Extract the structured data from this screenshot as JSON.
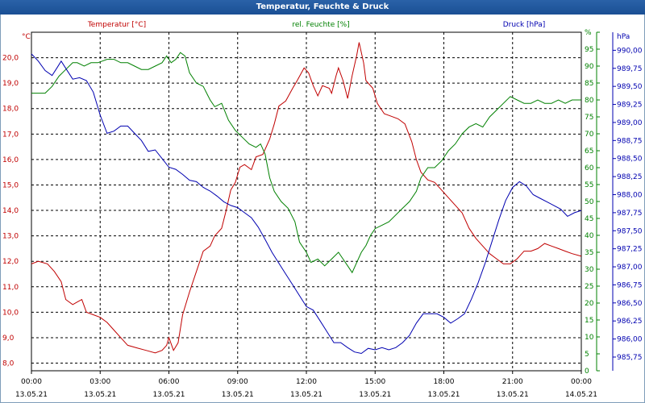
{
  "title": "Temperatur, Feuchte & Druck",
  "colors": {
    "temperature": "#c00000",
    "humidity": "#008000",
    "pressure": "#0000b0",
    "grid": "#000000"
  },
  "chart_data": {
    "type": "line",
    "title": "Temperatur, Feuchte & Druck",
    "grid": true,
    "x_axis": {
      "range_hours": [
        0,
        24
      ],
      "tick_times": [
        "00:00",
        "03:00",
        "06:00",
        "09:00",
        "12:00",
        "15:00",
        "18:00",
        "21:00",
        "00:00"
      ],
      "tick_dates": [
        "13.05.21",
        "13.05.21",
        "13.05.21",
        "13.05.21",
        "13.05.21",
        "13.05.21",
        "13.05.21",
        "13.05.21",
        "14.05.21"
      ]
    },
    "axes": {
      "temperature": {
        "label": "Temperatur [°C]",
        "unit": "°C",
        "ylim": [
          7.7,
          21.0
        ],
        "ticks": [
          "8,0",
          "9,0",
          "10,0",
          "11,0",
          "12,0",
          "13,0",
          "14,0",
          "15,0",
          "16,0",
          "17,0",
          "18,0",
          "19,0",
          "20,0"
        ],
        "tick_values": [
          8,
          9,
          10,
          11,
          12,
          13,
          14,
          15,
          16,
          17,
          18,
          19,
          20
        ]
      },
      "humidity": {
        "label": "rel. Feuchte [%]",
        "unit": "%",
        "ylim": [
          0,
          100
        ],
        "ticks": [
          "0",
          "5",
          "10",
          "15",
          "20",
          "25",
          "30",
          "35",
          "40",
          "45",
          "50",
          "55",
          "60",
          "65",
          "70",
          "75",
          "80",
          "85",
          "90",
          "95",
          "%"
        ],
        "tick_values": [
          0,
          5,
          10,
          15,
          20,
          25,
          30,
          35,
          40,
          45,
          50,
          55,
          60,
          65,
          70,
          75,
          80,
          85,
          90,
          95,
          100
        ]
      },
      "pressure": {
        "label": "Druck [hPa]",
        "unit": "hPa",
        "ylim": [
          985.56,
          990.25
        ],
        "ticks": [
          "985,75",
          "986,00",
          "986,25",
          "986,50",
          "986,75",
          "987,00",
          "987,25",
          "987,50",
          "987,75",
          "988,00",
          "988,25",
          "988,50",
          "988,75",
          "989,00",
          "989,25",
          "989,50",
          "989,75",
          "990,00"
        ],
        "tick_values": [
          985.75,
          986.0,
          986.25,
          986.5,
          986.75,
          987.0,
          987.25,
          987.5,
          987.75,
          988.0,
          988.25,
          988.5,
          988.75,
          989.0,
          989.25,
          989.5,
          989.75,
          990.0
        ]
      }
    },
    "series": [
      {
        "name": "Temperatur [°C]",
        "axis": "temperature",
        "points": [
          [
            0,
            11.9
          ],
          [
            0.3,
            12.0
          ],
          [
            0.7,
            11.9
          ],
          [
            1.0,
            11.6
          ],
          [
            1.3,
            11.2
          ],
          [
            1.5,
            10.5
          ],
          [
            1.8,
            10.3
          ],
          [
            2.0,
            10.4
          ],
          [
            2.2,
            10.5
          ],
          [
            2.4,
            10.0
          ],
          [
            2.7,
            9.9
          ],
          [
            3.0,
            9.8
          ],
          [
            3.3,
            9.6
          ],
          [
            3.6,
            9.3
          ],
          [
            3.9,
            9.0
          ],
          [
            4.2,
            8.7
          ],
          [
            4.6,
            8.6
          ],
          [
            5.0,
            8.5
          ],
          [
            5.4,
            8.4
          ],
          [
            5.7,
            8.5
          ],
          [
            5.9,
            8.7
          ],
          [
            6.0,
            9.0
          ],
          [
            6.2,
            8.5
          ],
          [
            6.4,
            8.8
          ],
          [
            6.6,
            9.9
          ],
          [
            6.9,
            10.8
          ],
          [
            7.2,
            11.6
          ],
          [
            7.5,
            12.4
          ],
          [
            7.8,
            12.6
          ],
          [
            8.0,
            13.0
          ],
          [
            8.3,
            13.3
          ],
          [
            8.5,
            14.0
          ],
          [
            8.7,
            14.8
          ],
          [
            8.9,
            15.1
          ],
          [
            9.1,
            15.7
          ],
          [
            9.3,
            15.8
          ],
          [
            9.6,
            15.6
          ],
          [
            9.8,
            16.1
          ],
          [
            10.1,
            16.2
          ],
          [
            10.4,
            16.8
          ],
          [
            10.6,
            17.4
          ],
          [
            10.8,
            18.1
          ],
          [
            11.1,
            18.3
          ],
          [
            11.4,
            18.8
          ],
          [
            11.6,
            19.1
          ],
          [
            11.9,
            19.6
          ],
          [
            12.1,
            19.4
          ],
          [
            12.3,
            18.9
          ],
          [
            12.5,
            18.5
          ],
          [
            12.7,
            18.9
          ],
          [
            13.0,
            18.8
          ],
          [
            13.1,
            18.6
          ],
          [
            13.3,
            19.3
          ],
          [
            13.4,
            19.6
          ],
          [
            13.6,
            19.1
          ],
          [
            13.8,
            18.4
          ],
          [
            14.0,
            19.3
          ],
          [
            14.2,
            20.1
          ],
          [
            14.3,
            20.6
          ],
          [
            14.5,
            19.8
          ],
          [
            14.6,
            19.1
          ],
          [
            14.9,
            18.8
          ],
          [
            15.1,
            18.2
          ],
          [
            15.4,
            17.8
          ],
          [
            15.7,
            17.7
          ],
          [
            16.0,
            17.6
          ],
          [
            16.3,
            17.4
          ],
          [
            16.6,
            16.7
          ],
          [
            16.8,
            16.0
          ],
          [
            17.0,
            15.5
          ],
          [
            17.3,
            15.2
          ],
          [
            17.6,
            15.1
          ],
          [
            17.9,
            14.8
          ],
          [
            18.2,
            14.5
          ],
          [
            18.5,
            14.2
          ],
          [
            18.8,
            13.9
          ],
          [
            19.1,
            13.3
          ],
          [
            19.4,
            12.9
          ],
          [
            19.7,
            12.6
          ],
          [
            20.0,
            12.3
          ],
          [
            20.3,
            12.1
          ],
          [
            20.6,
            11.9
          ],
          [
            20.9,
            11.9
          ],
          [
            21.2,
            12.1
          ],
          [
            21.5,
            12.4
          ],
          [
            21.8,
            12.4
          ],
          [
            22.1,
            12.5
          ],
          [
            22.4,
            12.7
          ],
          [
            22.7,
            12.6
          ],
          [
            23.0,
            12.5
          ],
          [
            23.3,
            12.4
          ],
          [
            23.6,
            12.3
          ],
          [
            24.0,
            12.2
          ]
        ]
      },
      {
        "name": "rel. Feuchte [%]",
        "axis": "humidity",
        "points": [
          [
            0,
            82
          ],
          [
            0.3,
            82
          ],
          [
            0.6,
            82
          ],
          [
            0.9,
            84
          ],
          [
            1.2,
            87
          ],
          [
            1.5,
            89
          ],
          [
            1.8,
            91
          ],
          [
            2.0,
            91
          ],
          [
            2.3,
            90
          ],
          [
            2.6,
            91
          ],
          [
            2.9,
            91
          ],
          [
            3.3,
            92
          ],
          [
            3.6,
            92
          ],
          [
            3.9,
            91
          ],
          [
            4.2,
            91
          ],
          [
            4.5,
            90
          ],
          [
            4.8,
            89
          ],
          [
            5.1,
            89
          ],
          [
            5.4,
            90
          ],
          [
            5.7,
            91
          ],
          [
            5.9,
            93
          ],
          [
            6.1,
            91
          ],
          [
            6.3,
            92
          ],
          [
            6.5,
            94
          ],
          [
            6.7,
            93
          ],
          [
            6.9,
            88
          ],
          [
            7.2,
            85
          ],
          [
            7.5,
            84
          ],
          [
            7.8,
            80
          ],
          [
            8.0,
            78
          ],
          [
            8.3,
            79
          ],
          [
            8.6,
            74
          ],
          [
            8.9,
            71
          ],
          [
            9.2,
            69
          ],
          [
            9.5,
            67
          ],
          [
            9.8,
            66
          ],
          [
            10.0,
            67
          ],
          [
            10.2,
            64
          ],
          [
            10.4,
            57
          ],
          [
            10.6,
            53
          ],
          [
            10.9,
            50
          ],
          [
            11.2,
            48
          ],
          [
            11.5,
            44
          ],
          [
            11.7,
            38
          ],
          [
            12.0,
            35
          ],
          [
            12.2,
            32
          ],
          [
            12.5,
            33
          ],
          [
            12.8,
            31
          ],
          [
            13.1,
            33
          ],
          [
            13.4,
            35
          ],
          [
            13.6,
            33
          ],
          [
            13.8,
            31
          ],
          [
            14.0,
            29
          ],
          [
            14.2,
            32
          ],
          [
            14.4,
            35
          ],
          [
            14.6,
            37
          ],
          [
            14.8,
            40
          ],
          [
            15.0,
            42
          ],
          [
            15.3,
            43
          ],
          [
            15.6,
            44
          ],
          [
            15.9,
            46
          ],
          [
            16.2,
            48
          ],
          [
            16.5,
            50
          ],
          [
            16.8,
            53
          ],
          [
            17.0,
            57
          ],
          [
            17.3,
            60
          ],
          [
            17.6,
            60
          ],
          [
            17.9,
            62
          ],
          [
            18.2,
            65
          ],
          [
            18.5,
            67
          ],
          [
            18.8,
            70
          ],
          [
            19.1,
            72
          ],
          [
            19.4,
            73
          ],
          [
            19.7,
            72
          ],
          [
            20.0,
            75
          ],
          [
            20.3,
            77
          ],
          [
            20.6,
            79
          ],
          [
            20.9,
            81
          ],
          [
            21.2,
            80
          ],
          [
            21.5,
            79
          ],
          [
            21.8,
            79
          ],
          [
            22.1,
            80
          ],
          [
            22.4,
            79
          ],
          [
            22.7,
            79
          ],
          [
            23.0,
            80
          ],
          [
            23.3,
            79
          ],
          [
            23.6,
            80
          ],
          [
            24.0,
            80
          ]
        ]
      },
      {
        "name": "Druck [hPa]",
        "axis": "pressure",
        "points": [
          [
            0,
            989.95
          ],
          [
            0.3,
            989.85
          ],
          [
            0.6,
            989.72
          ],
          [
            0.9,
            989.65
          ],
          [
            1.1,
            989.75
          ],
          [
            1.3,
            989.85
          ],
          [
            1.5,
            989.75
          ],
          [
            1.8,
            989.6
          ],
          [
            2.1,
            989.62
          ],
          [
            2.4,
            989.58
          ],
          [
            2.7,
            989.42
          ],
          [
            3.0,
            989.1
          ],
          [
            3.3,
            988.85
          ],
          [
            3.6,
            988.88
          ],
          [
            3.9,
            988.95
          ],
          [
            4.2,
            988.95
          ],
          [
            4.5,
            988.85
          ],
          [
            4.8,
            988.75
          ],
          [
            5.1,
            988.6
          ],
          [
            5.4,
            988.62
          ],
          [
            5.7,
            988.5
          ],
          [
            6.0,
            988.38
          ],
          [
            6.3,
            988.35
          ],
          [
            6.6,
            988.28
          ],
          [
            6.9,
            988.2
          ],
          [
            7.2,
            988.18
          ],
          [
            7.5,
            988.1
          ],
          [
            7.8,
            988.05
          ],
          [
            8.1,
            987.98
          ],
          [
            8.4,
            987.9
          ],
          [
            8.7,
            987.85
          ],
          [
            9.0,
            987.82
          ],
          [
            9.3,
            987.75
          ],
          [
            9.6,
            987.68
          ],
          [
            9.9,
            987.55
          ],
          [
            10.2,
            987.38
          ],
          [
            10.5,
            987.2
          ],
          [
            10.8,
            987.05
          ],
          [
            11.1,
            986.9
          ],
          [
            11.4,
            986.75
          ],
          [
            11.7,
            986.6
          ],
          [
            12.0,
            986.45
          ],
          [
            12.3,
            986.4
          ],
          [
            12.6,
            986.25
          ],
          [
            12.9,
            986.1
          ],
          [
            13.2,
            985.95
          ],
          [
            13.5,
            985.95
          ],
          [
            13.8,
            985.88
          ],
          [
            14.1,
            985.82
          ],
          [
            14.4,
            985.8
          ],
          [
            14.7,
            985.87
          ],
          [
            15.0,
            985.85
          ],
          [
            15.3,
            985.88
          ],
          [
            15.6,
            985.85
          ],
          [
            15.9,
            985.88
          ],
          [
            16.2,
            985.95
          ],
          [
            16.5,
            986.05
          ],
          [
            16.8,
            986.22
          ],
          [
            17.1,
            986.35
          ],
          [
            17.4,
            986.35
          ],
          [
            17.7,
            986.35
          ],
          [
            18.0,
            986.3
          ],
          [
            18.3,
            986.22
          ],
          [
            18.6,
            986.28
          ],
          [
            18.9,
            986.35
          ],
          [
            19.2,
            986.55
          ],
          [
            19.5,
            986.78
          ],
          [
            19.8,
            987.05
          ],
          [
            20.1,
            987.35
          ],
          [
            20.4,
            987.65
          ],
          [
            20.7,
            987.92
          ],
          [
            21.0,
            988.1
          ],
          [
            21.3,
            988.18
          ],
          [
            21.6,
            988.12
          ],
          [
            21.9,
            988.0
          ],
          [
            22.2,
            987.95
          ],
          [
            22.5,
            987.9
          ],
          [
            22.8,
            987.85
          ],
          [
            23.1,
            987.8
          ],
          [
            23.4,
            987.7
          ],
          [
            23.7,
            987.75
          ],
          [
            24.0,
            987.78
          ]
        ]
      }
    ]
  }
}
